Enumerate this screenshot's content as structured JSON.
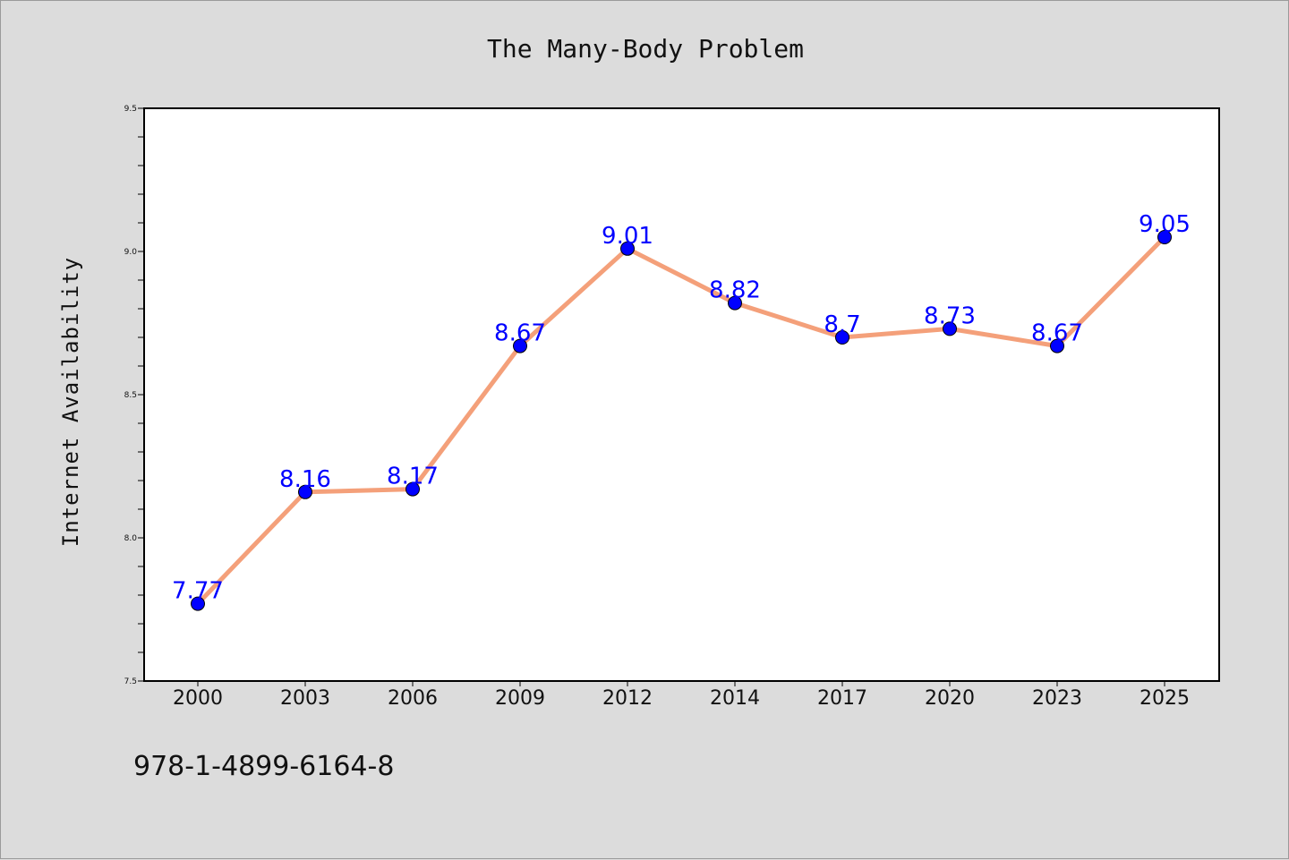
{
  "chart_data": {
    "type": "line",
    "title": "The Many-Body Problem",
    "xlabel": "",
    "ylabel": "Internet Availability",
    "categories": [
      "2000",
      "2003",
      "2006",
      "2009",
      "2012",
      "2014",
      "2017",
      "2020",
      "2023",
      "2025"
    ],
    "series": [
      {
        "values": [
          7.77,
          8.16,
          8.17,
          8.67,
          9.01,
          8.82,
          8.7,
          8.73,
          8.67,
          9.05
        ],
        "labels": [
          "7.77",
          "8.16",
          "8.17",
          "8.67",
          "9.01",
          "8.82",
          "8.7",
          "8.73",
          "8.67",
          "9.05"
        ],
        "line_color": "#f4a07a",
        "marker_color": "#0000ff"
      }
    ],
    "ylim": [
      7.5,
      9.5
    ],
    "yticks": [
      "7.5",
      "8.0",
      "8.5",
      "9.0",
      "9.5"
    ],
    "grid": false,
    "legend": "none",
    "annotation": "978-1-4899-6164-8"
  }
}
